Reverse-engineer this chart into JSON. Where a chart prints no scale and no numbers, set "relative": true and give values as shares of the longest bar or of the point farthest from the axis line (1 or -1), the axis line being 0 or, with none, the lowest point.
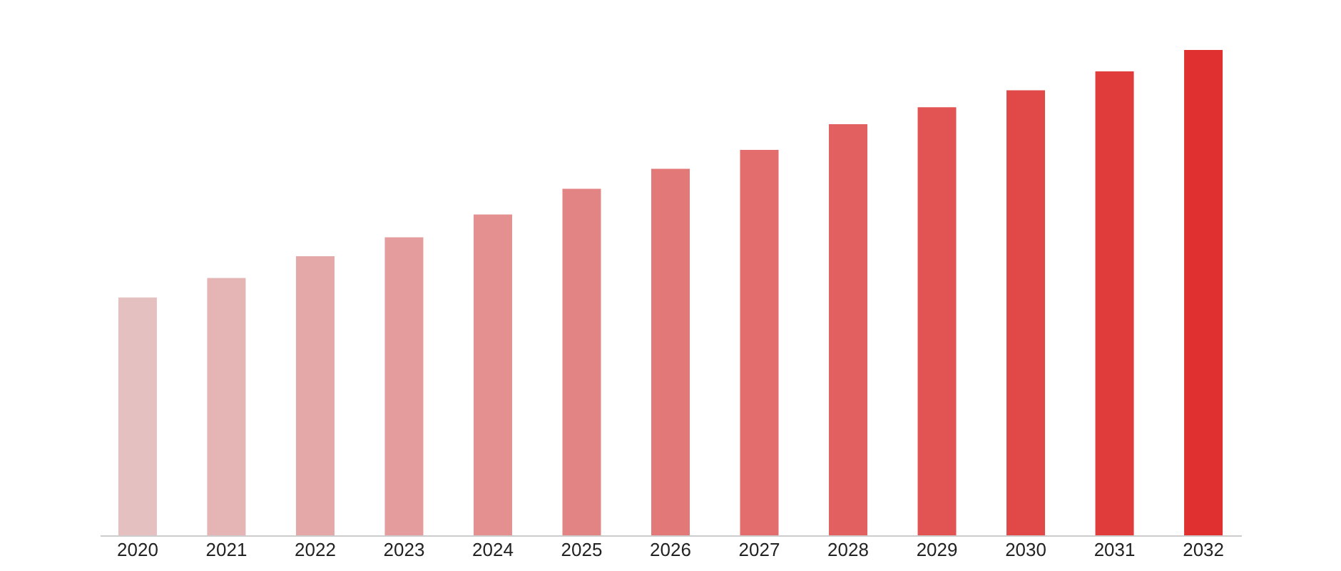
{
  "chart_data": {
    "type": "bar",
    "relative": true,
    "categories": [
      "2020",
      "2021",
      "2022",
      "2023",
      "2024",
      "2025",
      "2026",
      "2027",
      "2028",
      "2029",
      "2030",
      "2031",
      "2032"
    ],
    "values": [
      0.49,
      0.53,
      0.575,
      0.614,
      0.661,
      0.714,
      0.755,
      0.794,
      0.847,
      0.882,
      0.917,
      0.956,
      1
    ],
    "colors": [
      "#e5c0c0",
      "#e5b4b4",
      "#e4a8a8",
      "#e49c9c",
      "#e49090",
      "#e38484",
      "#e37878",
      "#e36c6c",
      "#e26060",
      "#e25454",
      "#e14848",
      "#e13c3c",
      "#e03030"
    ]
  }
}
